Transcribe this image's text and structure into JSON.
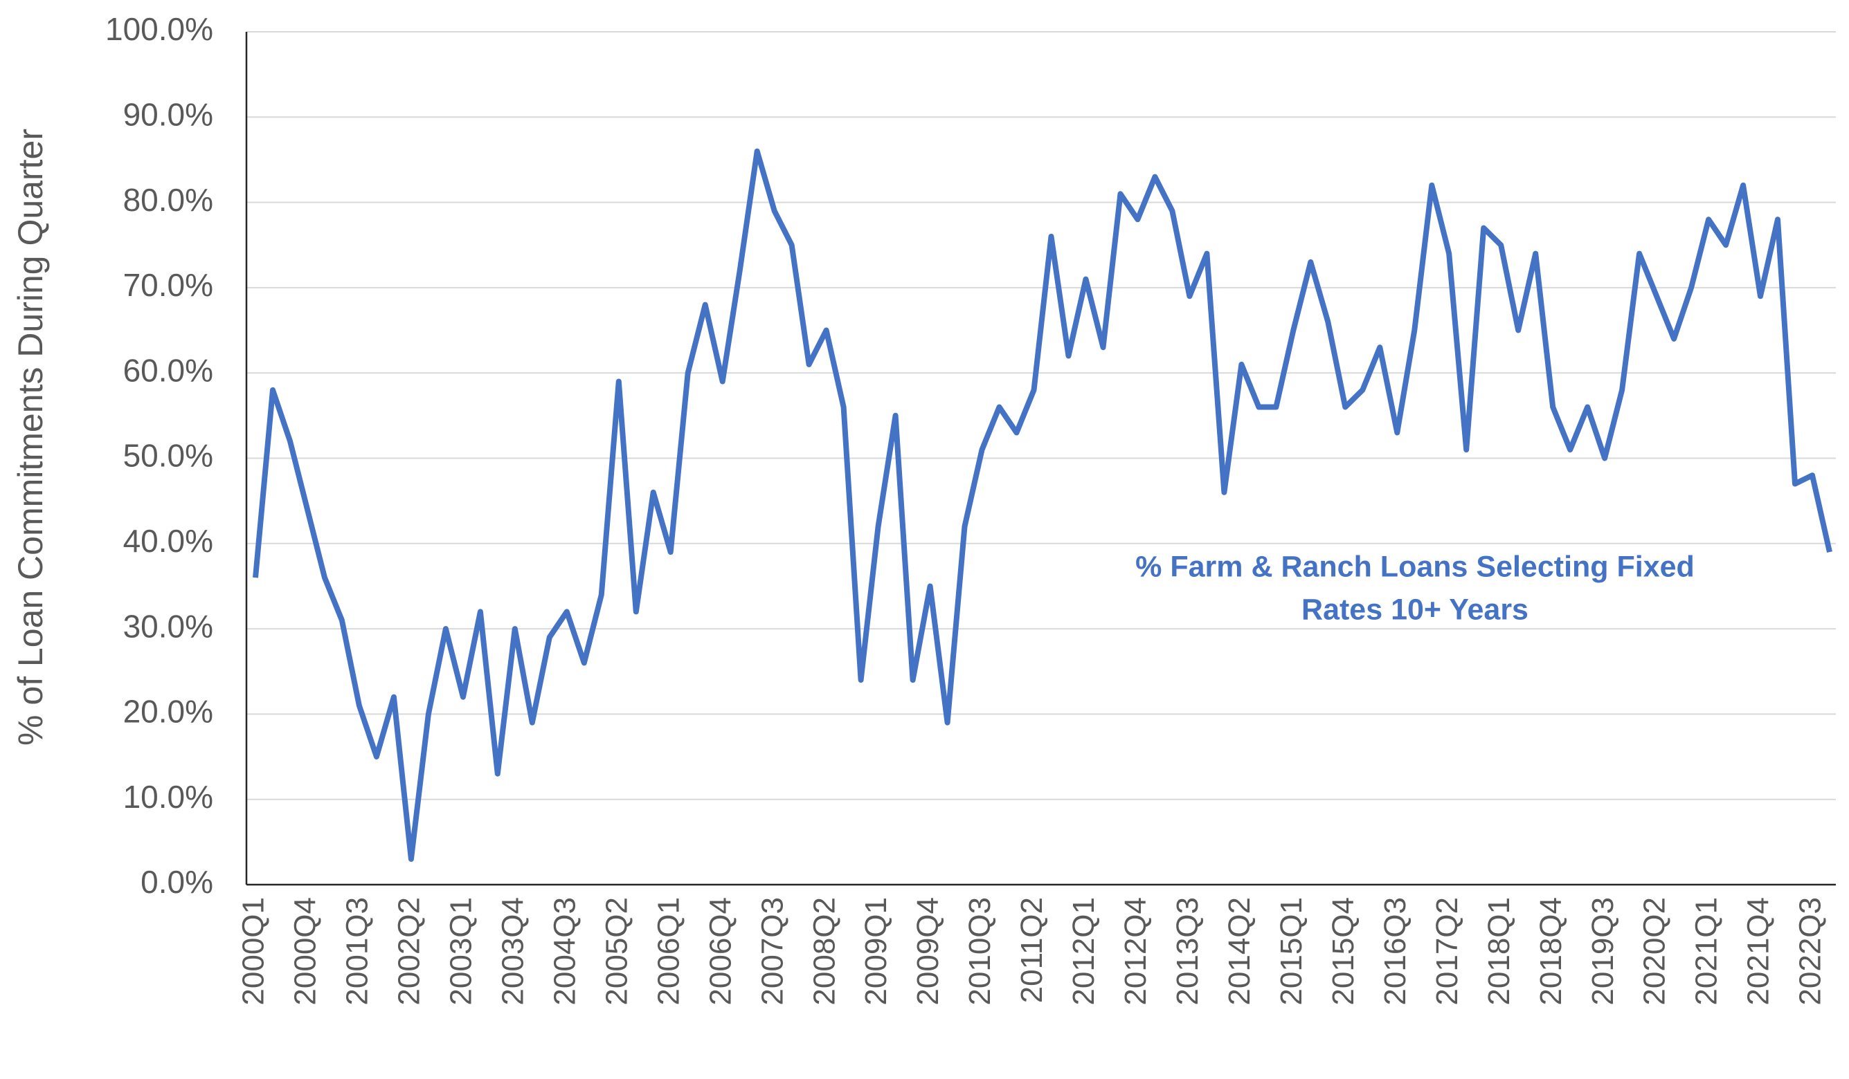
{
  "chart_data": {
    "type": "line",
    "y_axis_label": "% of Loan Commitments During Quarter",
    "annotation": [
      "% Farm & Ranch Loans Selecting Fixed",
      "Rates 10+ Years"
    ],
    "categories": [
      "2000Q1",
      null,
      null,
      "2000Q4",
      null,
      null,
      "2001Q3",
      null,
      null,
      "2002Q2",
      null,
      null,
      "2003Q1",
      null,
      null,
      "2003Q4",
      null,
      null,
      "2004Q3",
      null,
      null,
      "2005Q2",
      null,
      null,
      "2006Q1",
      null,
      null,
      "2006Q4",
      null,
      null,
      "2007Q3",
      null,
      null,
      "2008Q2",
      null,
      null,
      "2009Q1",
      null,
      null,
      "2009Q4",
      null,
      null,
      "2010Q3",
      null,
      null,
      "2011Q2",
      null,
      null,
      "2012Q1",
      null,
      null,
      "2012Q4",
      null,
      null,
      "2013Q3",
      null,
      null,
      "2014Q2",
      null,
      null,
      "2015Q1",
      null,
      null,
      "2015Q4",
      null,
      null,
      "2016Q3",
      null,
      null,
      "2017Q2",
      null,
      null,
      "2018Q1",
      null,
      null,
      "2018Q4",
      null,
      null,
      "2019Q3",
      null,
      null,
      "2020Q2",
      null,
      null,
      "2021Q1",
      null,
      null,
      "2021Q4",
      null,
      null,
      "2022Q3",
      null
    ],
    "series": [
      {
        "color": "#4472c4",
        "values": [
          36,
          58,
          52,
          44,
          36,
          31,
          21,
          15,
          22,
          3,
          20,
          30,
          22,
          32,
          13,
          30,
          19,
          29,
          32,
          26,
          34,
          59,
          32,
          46,
          39,
          60,
          68,
          59,
          72,
          86,
          79,
          75,
          61,
          65,
          56,
          24,
          42,
          55,
          24,
          35,
          19,
          42,
          51,
          56,
          53,
          58,
          76,
          62,
          71,
          63,
          81,
          78,
          83,
          79,
          69,
          74,
          46,
          61,
          56,
          56,
          65,
          73,
          66,
          56,
          58,
          63,
          53,
          65,
          82,
          74,
          51,
          77,
          75,
          65,
          74,
          56,
          51,
          56,
          50,
          58,
          74,
          69,
          64,
          70,
          78,
          75,
          82,
          69,
          78,
          47,
          48,
          39
        ]
      }
    ],
    "ylim": [
      0,
      100
    ],
    "yticks": [
      {
        "value": 0,
        "label": "0.0%"
      },
      {
        "value": 10,
        "label": "10.0%"
      },
      {
        "value": 20,
        "label": "20.0%"
      },
      {
        "value": 30,
        "label": "30.0%"
      },
      {
        "value": 40,
        "label": "40.0%"
      },
      {
        "value": 50,
        "label": "50.0%"
      },
      {
        "value": 60,
        "label": "60.0%"
      },
      {
        "value": 70,
        "label": "70.0%"
      },
      {
        "value": 80,
        "label": "80.0%"
      },
      {
        "value": 90,
        "label": "90.0%"
      },
      {
        "value": 100,
        "label": "100.0%"
      }
    ],
    "grid": true
  }
}
